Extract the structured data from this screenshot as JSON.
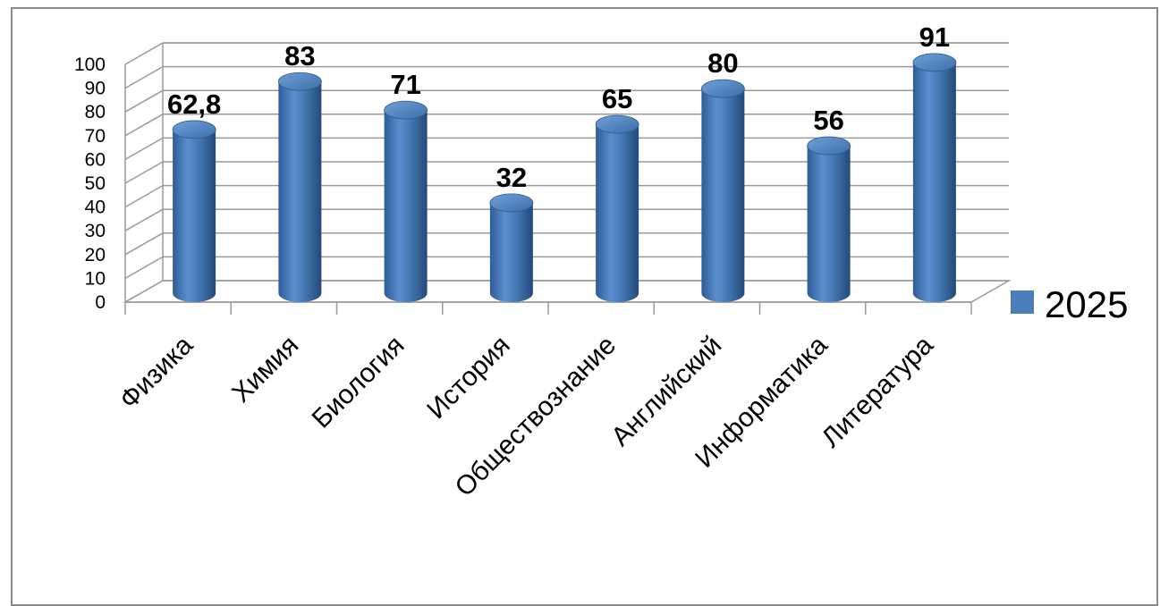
{
  "chart_data": {
    "type": "bar",
    "style": "3d-cylinder",
    "categories": [
      "Физика",
      "Химия",
      "Биология",
      "История",
      "Обществознание",
      "Английский",
      "Информатика",
      "Литература"
    ],
    "series": [
      {
        "name": "2025",
        "values": [
          62.8,
          83,
          71,
          32,
          65,
          80,
          56,
          91
        ],
        "color": "#4a7ebb"
      }
    ],
    "data_labels": [
      "62,8",
      "83",
      "71",
      "32",
      "65",
      "80",
      "56",
      "91"
    ],
    "ylim": [
      0,
      100
    ],
    "y_ticks": [
      "0",
      "10",
      "20",
      "30",
      "40",
      "50",
      "60",
      "70",
      "80",
      "90",
      "100"
    ],
    "grid": true,
    "legend": {
      "position": "right",
      "label": "2025"
    }
  }
}
